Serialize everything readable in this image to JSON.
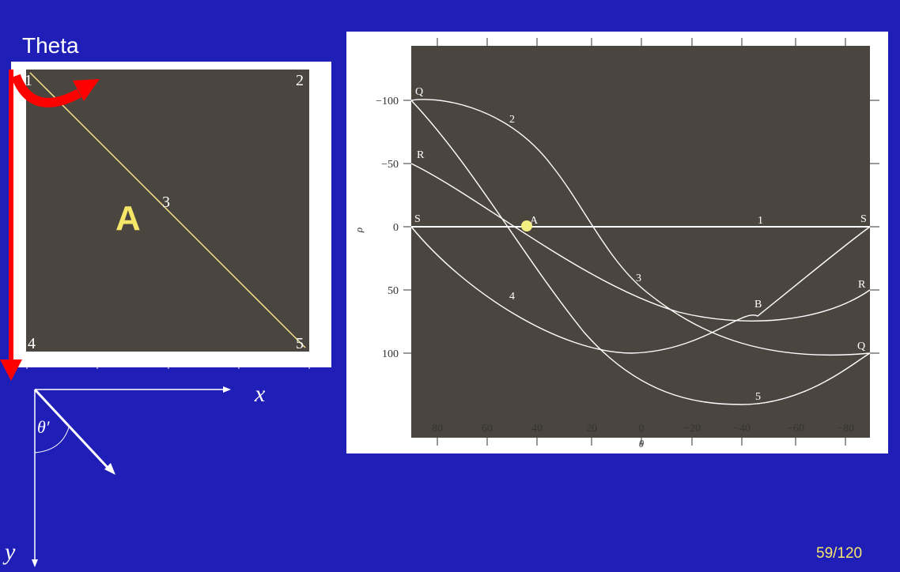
{
  "slide": {
    "title": "Theta",
    "page_number": "59/120",
    "colors": {
      "background": "#1f1fb8",
      "image_gray": "#4b4540",
      "line_yellow": "#f5e68a",
      "arrow_red": "#ff0000",
      "label_a": "#f5e66a"
    }
  },
  "image_panel": {
    "corner_labels": [
      "1",
      "2",
      "3",
      "4",
      "5"
    ],
    "region_label": "A"
  },
  "axes_diagram": {
    "x_label": "x",
    "y_label": "y",
    "angle_label": "θ′"
  },
  "hough_plot": {
    "x_ticks": [
      "80",
      "60",
      "40",
      "20",
      "0",
      "−20",
      "−40",
      "−60",
      "−80"
    ],
    "y_ticks": [
      "−100",
      "−50",
      "0",
      "50",
      "100"
    ],
    "x_axis_label": "θ",
    "y_axis_label": "ρ",
    "curve_labels": {
      "curve_1": "1",
      "curve_2": "2",
      "curve_3": "3",
      "curve_4": "4",
      "curve_5": "5"
    },
    "endpoint_labels": {
      "q_left": "Q",
      "r_left": "R",
      "s_left": "S",
      "s_right": "S",
      "r_right": "R",
      "q_right": "Q"
    },
    "point_labels": {
      "a": "A",
      "b": "B"
    }
  }
}
